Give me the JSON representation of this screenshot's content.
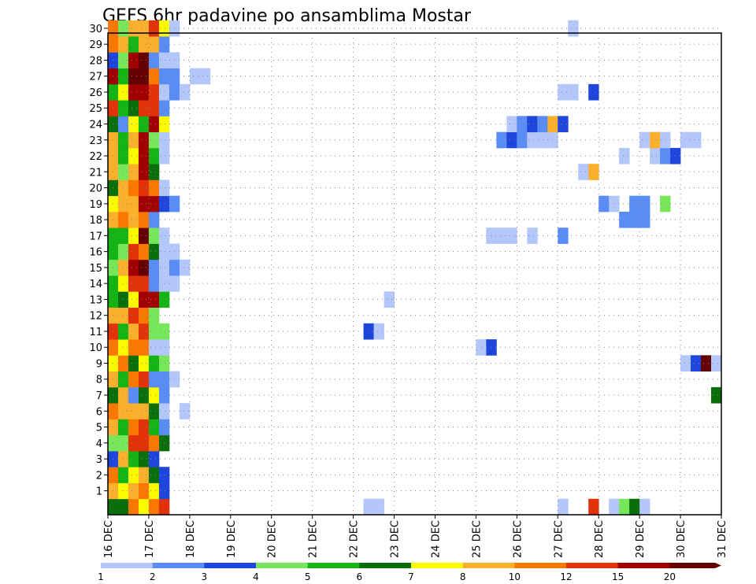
{
  "chart_data": {
    "type": "heatmap",
    "title": "GEFS 6hr padavine po ansamblima Mostar",
    "x_tick_labels": [
      "16 DEC",
      "17 DEC",
      "18 DEC",
      "19 DEC",
      "20 DEC",
      "21 DEC",
      "22 DEC",
      "23 DEC",
      "24 DEC",
      "25 DEC",
      "26 DEC",
      "27 DEC",
      "28 DEC",
      "29 DEC",
      "30 DEC",
      "31 DEC"
    ],
    "y_tick_labels": [
      "1",
      "2",
      "3",
      "4",
      "5",
      "6",
      "7",
      "8",
      "9",
      "10",
      "11",
      "12",
      "13",
      "14",
      "15",
      "16",
      "17",
      "18",
      "19",
      "20",
      "21",
      "22",
      "23",
      "24",
      "25",
      "26",
      "27",
      "28",
      "29",
      "30"
    ],
    "xlim_days": [
      16,
      31
    ],
    "ylim_members": [
      0,
      30
    ],
    "steps_per_day": 4,
    "grid": true,
    "colorbar": {
      "position": "bottom",
      "labels": [
        "1",
        "2",
        "3",
        "4",
        "5",
        "6",
        "7",
        "8",
        "10",
        "12",
        "15",
        "20"
      ],
      "colors": [
        "#b4c7fa",
        "#5a8cf5",
        "#1e46dc",
        "#78e65a",
        "#14b414",
        "#0a6e0a",
        "#fafa00",
        "#faaf2d",
        "#fa7800",
        "#e1320a",
        "#a00000",
        "#640000"
      ]
    },
    "cells": [
      [
        0,
        0,
        "#0a6e0a"
      ],
      [
        0,
        1,
        "#0a6e0a"
      ],
      [
        0,
        2,
        "#fa7800"
      ],
      [
        0,
        3,
        "#fafa00"
      ],
      [
        0,
        4,
        "#fa7800"
      ],
      [
        0,
        5,
        "#e1320a"
      ],
      [
        0,
        25,
        "#b4c7fa"
      ],
      [
        0,
        26,
        "#b4c7fa"
      ],
      [
        0,
        44,
        "#b4c7fa"
      ],
      [
        0,
        47,
        "#e1320a"
      ],
      [
        0,
        49,
        "#b4c7fa"
      ],
      [
        0,
        50,
        "#78e65a"
      ],
      [
        0,
        51,
        "#0a6e0a"
      ],
      [
        0,
        52,
        "#b4c7fa"
      ],
      [
        1,
        0,
        "#faaf2d"
      ],
      [
        1,
        1,
        "#fafa00"
      ],
      [
        1,
        2,
        "#faaf2d"
      ],
      [
        1,
        3,
        "#fa7800"
      ],
      [
        1,
        4,
        "#fafa00"
      ],
      [
        1,
        5,
        "#1e46dc"
      ],
      [
        2,
        0,
        "#fa7800"
      ],
      [
        2,
        1,
        "#14b414"
      ],
      [
        2,
        2,
        "#fafa00"
      ],
      [
        2,
        3,
        "#faaf2d"
      ],
      [
        2,
        4,
        "#0a6e0a"
      ],
      [
        2,
        5,
        "#1e46dc"
      ],
      [
        3,
        0,
        "#1e46dc"
      ],
      [
        3,
        1,
        "#faaf2d"
      ],
      [
        3,
        2,
        "#14b414"
      ],
      [
        3,
        3,
        "#0a6e0a"
      ],
      [
        3,
        4,
        "#1e46dc"
      ],
      [
        4,
        0,
        "#78e65a"
      ],
      [
        4,
        1,
        "#78e65a"
      ],
      [
        4,
        2,
        "#e1320a"
      ],
      [
        4,
        3,
        "#e1320a"
      ],
      [
        4,
        4,
        "#fa7800"
      ],
      [
        4,
        5,
        "#0a6e0a"
      ],
      [
        5,
        0,
        "#faaf2d"
      ],
      [
        5,
        1,
        "#14b414"
      ],
      [
        5,
        2,
        "#fa7800"
      ],
      [
        5,
        3,
        "#e1320a"
      ],
      [
        5,
        4,
        "#14b414"
      ],
      [
        5,
        5,
        "#5a8cf5"
      ],
      [
        6,
        0,
        "#fa7800"
      ],
      [
        6,
        1,
        "#faaf2d"
      ],
      [
        6,
        2,
        "#faaf2d"
      ],
      [
        6,
        3,
        "#faaf2d"
      ],
      [
        6,
        4,
        "#0a6e0a"
      ],
      [
        6,
        5,
        "#b4c7fa"
      ],
      [
        6,
        7,
        "#b4c7fa"
      ],
      [
        7,
        0,
        "#0a6e0a"
      ],
      [
        7,
        1,
        "#faaf2d"
      ],
      [
        7,
        2,
        "#5a8cf5"
      ],
      [
        7,
        3,
        "#0a6e0a"
      ],
      [
        7,
        4,
        "#fafa00"
      ],
      [
        7,
        5,
        "#5a8cf5"
      ],
      [
        7,
        59,
        "#0a6e0a"
      ],
      [
        8,
        0,
        "#faaf2d"
      ],
      [
        8,
        1,
        "#14b414"
      ],
      [
        8,
        2,
        "#fa7800"
      ],
      [
        8,
        3,
        "#e1320a"
      ],
      [
        8,
        4,
        "#5a8cf5"
      ],
      [
        8,
        5,
        "#5a8cf5"
      ],
      [
        8,
        6,
        "#b4c7fa"
      ],
      [
        9,
        0,
        "#fafa00"
      ],
      [
        9,
        1,
        "#fa7800"
      ],
      [
        9,
        2,
        "#0a6e0a"
      ],
      [
        9,
        3,
        "#fafa00"
      ],
      [
        9,
        4,
        "#14b414"
      ],
      [
        9,
        5,
        "#78e65a"
      ],
      [
        9,
        56,
        "#b4c7fa"
      ],
      [
        9,
        57,
        "#1e46dc"
      ],
      [
        9,
        58,
        "#640000"
      ],
      [
        9,
        59,
        "#b4c7fa"
      ],
      [
        10,
        0,
        "#fa7800"
      ],
      [
        10,
        1,
        "#fafa00"
      ],
      [
        10,
        2,
        "#fa7800"
      ],
      [
        10,
        3,
        "#fa7800"
      ],
      [
        10,
        4,
        "#b4c7fa"
      ],
      [
        10,
        5,
        "#b4c7fa"
      ],
      [
        10,
        36,
        "#b4c7fa"
      ],
      [
        10,
        37,
        "#1e46dc"
      ],
      [
        11,
        0,
        "#e1320a"
      ],
      [
        11,
        1,
        "#14b414"
      ],
      [
        11,
        2,
        "#faaf2d"
      ],
      [
        11,
        3,
        "#e1320a"
      ],
      [
        11,
        4,
        "#78e65a"
      ],
      [
        11,
        5,
        "#78e65a"
      ],
      [
        11,
        25,
        "#1e46dc"
      ],
      [
        11,
        26,
        "#b4c7fa"
      ],
      [
        12,
        0,
        "#faaf2d"
      ],
      [
        12,
        1,
        "#faaf2d"
      ],
      [
        12,
        2,
        "#e1320a"
      ],
      [
        12,
        3,
        "#fa7800"
      ],
      [
        12,
        4,
        "#78e65a"
      ],
      [
        13,
        0,
        "#14b414"
      ],
      [
        13,
        1,
        "#0a6e0a"
      ],
      [
        13,
        2,
        "#fafa00"
      ],
      [
        13,
        3,
        "#a00000"
      ],
      [
        13,
        4,
        "#a00000"
      ],
      [
        13,
        5,
        "#14b414"
      ],
      [
        13,
        27,
        "#b4c7fa"
      ],
      [
        14,
        0,
        "#14b414"
      ],
      [
        14,
        1,
        "#fafa00"
      ],
      [
        14,
        2,
        "#e1320a"
      ],
      [
        14,
        3,
        "#e1320a"
      ],
      [
        14,
        4,
        "#5a8cf5"
      ],
      [
        14,
        5,
        "#b4c7fa"
      ],
      [
        14,
        6,
        "#b4c7fa"
      ],
      [
        15,
        0,
        "#78e65a"
      ],
      [
        15,
        1,
        "#faaf2d"
      ],
      [
        15,
        2,
        "#a00000"
      ],
      [
        15,
        3,
        "#640000"
      ],
      [
        15,
        4,
        "#5a8cf5"
      ],
      [
        15,
        5,
        "#b4c7fa"
      ],
      [
        15,
        6,
        "#5a8cf5"
      ],
      [
        15,
        7,
        "#b4c7fa"
      ],
      [
        16,
        0,
        "#14b414"
      ],
      [
        16,
        1,
        "#78e65a"
      ],
      [
        16,
        2,
        "#e1320a"
      ],
      [
        16,
        3,
        "#fa7800"
      ],
      [
        16,
        4,
        "#0a6e0a"
      ],
      [
        16,
        5,
        "#b4c7fa"
      ],
      [
        16,
        6,
        "#b4c7fa"
      ],
      [
        17,
        0,
        "#14b414"
      ],
      [
        17,
        1,
        "#14b414"
      ],
      [
        17,
        2,
        "#fafa00"
      ],
      [
        17,
        3,
        "#640000"
      ],
      [
        17,
        4,
        "#78e65a"
      ],
      [
        17,
        5,
        "#b4c7fa"
      ],
      [
        17,
        37,
        "#b4c7fa"
      ],
      [
        17,
        38,
        "#b4c7fa"
      ],
      [
        17,
        39,
        "#b4c7fa"
      ],
      [
        17,
        41,
        "#b4c7fa"
      ],
      [
        17,
        44,
        "#5a8cf5"
      ],
      [
        18,
        0,
        "#faaf2d"
      ],
      [
        18,
        1,
        "#fa7800"
      ],
      [
        18,
        2,
        "#faaf2d"
      ],
      [
        18,
        3,
        "#fa7800"
      ],
      [
        18,
        4,
        "#5a8cf5"
      ],
      [
        18,
        50,
        "#5a8cf5"
      ],
      [
        18,
        51,
        "#5a8cf5"
      ],
      [
        18,
        52,
        "#5a8cf5"
      ],
      [
        19,
        0,
        "#fafa00"
      ],
      [
        19,
        1,
        "#faaf2d"
      ],
      [
        19,
        2,
        "#faaf2d"
      ],
      [
        19,
        3,
        "#a00000"
      ],
      [
        19,
        4,
        "#a00000"
      ],
      [
        19,
        5,
        "#1e46dc"
      ],
      [
        19,
        6,
        "#5a8cf5"
      ],
      [
        19,
        48,
        "#5a8cf5"
      ],
      [
        19,
        49,
        "#b4c7fa"
      ],
      [
        19,
        51,
        "#5a8cf5"
      ],
      [
        19,
        52,
        "#5a8cf5"
      ],
      [
        19,
        54,
        "#78e65a"
      ],
      [
        20,
        0,
        "#0a6e0a"
      ],
      [
        20,
        1,
        "#faaf2d"
      ],
      [
        20,
        2,
        "#fa7800"
      ],
      [
        20,
        3,
        "#e1320a"
      ],
      [
        20,
        4,
        "#fa7800"
      ],
      [
        20,
        5,
        "#b4c7fa"
      ],
      [
        21,
        0,
        "#faaf2d"
      ],
      [
        21,
        1,
        "#78e65a"
      ],
      [
        21,
        2,
        "#faaf2d"
      ],
      [
        21,
        3,
        "#a00000"
      ],
      [
        21,
        4,
        "#0a6e0a"
      ],
      [
        21,
        46,
        "#b4c7fa"
      ],
      [
        21,
        47,
        "#faaf2d"
      ],
      [
        22,
        0,
        "#faaf2d"
      ],
      [
        22,
        1,
        "#14b414"
      ],
      [
        22,
        2,
        "#fafa00"
      ],
      [
        22,
        3,
        "#a00000"
      ],
      [
        22,
        4,
        "#14b414"
      ],
      [
        22,
        5,
        "#b4c7fa"
      ],
      [
        22,
        50,
        "#b4c7fa"
      ],
      [
        22,
        53,
        "#b4c7fa"
      ],
      [
        22,
        54,
        "#5a8cf5"
      ],
      [
        22,
        55,
        "#1e46dc"
      ],
      [
        23,
        0,
        "#faaf2d"
      ],
      [
        23,
        1,
        "#14b414"
      ],
      [
        23,
        2,
        "#faaf2d"
      ],
      [
        23,
        3,
        "#a00000"
      ],
      [
        23,
        4,
        "#78e65a"
      ],
      [
        23,
        5,
        "#b4c7fa"
      ],
      [
        23,
        38,
        "#5a8cf5"
      ],
      [
        23,
        39,
        "#1e46dc"
      ],
      [
        23,
        40,
        "#5a8cf5"
      ],
      [
        23,
        41,
        "#b4c7fa"
      ],
      [
        23,
        42,
        "#b4c7fa"
      ],
      [
        23,
        43,
        "#b4c7fa"
      ],
      [
        23,
        52,
        "#b4c7fa"
      ],
      [
        23,
        53,
        "#faaf2d"
      ],
      [
        23,
        54,
        "#b4c7fa"
      ],
      [
        23,
        56,
        "#b4c7fa"
      ],
      [
        23,
        57,
        "#b4c7fa"
      ],
      [
        24,
        0,
        "#0a6e0a"
      ],
      [
        24,
        1,
        "#5a8cf5"
      ],
      [
        24,
        2,
        "#fafa00"
      ],
      [
        24,
        3,
        "#14b414"
      ],
      [
        24,
        4,
        "#a00000"
      ],
      [
        24,
        5,
        "#fafa00"
      ],
      [
        24,
        39,
        "#b4c7fa"
      ],
      [
        24,
        40,
        "#5a8cf5"
      ],
      [
        24,
        41,
        "#1e46dc"
      ],
      [
        24,
        42,
        "#5a8cf5"
      ],
      [
        24,
        43,
        "#faaf2d"
      ],
      [
        24,
        44,
        "#1e46dc"
      ],
      [
        25,
        0,
        "#e1320a"
      ],
      [
        25,
        1,
        "#14b414"
      ],
      [
        25,
        2,
        "#0a6e0a"
      ],
      [
        25,
        3,
        "#e1320a"
      ],
      [
        25,
        4,
        "#e1320a"
      ],
      [
        25,
        5,
        "#5a8cf5"
      ],
      [
        26,
        0,
        "#14b414"
      ],
      [
        26,
        1,
        "#fafa00"
      ],
      [
        26,
        2,
        "#a00000"
      ],
      [
        26,
        3,
        "#a00000"
      ],
      [
        26,
        4,
        "#e1320a"
      ],
      [
        26,
        5,
        "#b4c7fa"
      ],
      [
        26,
        6,
        "#5a8cf5"
      ],
      [
        26,
        7,
        "#b4c7fa"
      ],
      [
        26,
        44,
        "#b4c7fa"
      ],
      [
        26,
        45,
        "#b4c7fa"
      ],
      [
        26,
        47,
        "#1e46dc"
      ],
      [
        27,
        0,
        "#a00000"
      ],
      [
        27,
        1,
        "#14b414"
      ],
      [
        27,
        2,
        "#640000"
      ],
      [
        27,
        3,
        "#640000"
      ],
      [
        27,
        4,
        "#fa7800"
      ],
      [
        27,
        5,
        "#5a8cf5"
      ],
      [
        27,
        6,
        "#5a8cf5"
      ],
      [
        27,
        8,
        "#b4c7fa"
      ],
      [
        27,
        9,
        "#b4c7fa"
      ],
      [
        28,
        0,
        "#1e46dc"
      ],
      [
        28,
        1,
        "#78e65a"
      ],
      [
        28,
        2,
        "#a00000"
      ],
      [
        28,
        3,
        "#640000"
      ],
      [
        28,
        4,
        "#5a8cf5"
      ],
      [
        28,
        5,
        "#b4c7fa"
      ],
      [
        28,
        6,
        "#b4c7fa"
      ],
      [
        29,
        0,
        "#fa7800"
      ],
      [
        29,
        1,
        "#faaf2d"
      ],
      [
        29,
        2,
        "#14b414"
      ],
      [
        29,
        3,
        "#faaf2d"
      ],
      [
        29,
        4,
        "#faaf2d"
      ],
      [
        29,
        5,
        "#5a8cf5"
      ],
      [
        30,
        0,
        "#fa7800"
      ],
      [
        30,
        1,
        "#78e65a"
      ],
      [
        30,
        2,
        "#faaf2d"
      ],
      [
        30,
        3,
        "#faaf2d"
      ],
      [
        30,
        4,
        "#e1320a"
      ],
      [
        30,
        5,
        "#fafa00"
      ],
      [
        30,
        6,
        "#b4c7fa"
      ],
      [
        30,
        45,
        "#b4c7fa"
      ]
    ]
  }
}
